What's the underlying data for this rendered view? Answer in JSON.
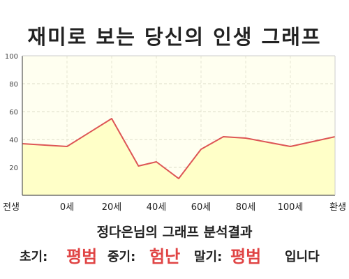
{
  "title": "재미로 보는 당신의 인생 그래프",
  "chart_data": {
    "type": "area",
    "x": [
      "전생",
      "0세",
      "20세",
      "40세",
      "60세",
      "80세",
      "100세",
      "환생"
    ],
    "x_numeric": [
      -20,
      0,
      20,
      40,
      60,
      80,
      100,
      120
    ],
    "series": [
      {
        "x": [
          -20,
          0,
          20,
          32,
          40,
          50,
          60,
          70,
          80,
          100,
          120
        ],
        "values": [
          37,
          35,
          55,
          21,
          24,
          12,
          33,
          42,
          41,
          35,
          42
        ]
      }
    ],
    "ylim": [
      0,
      100
    ],
    "yticks": [
      20,
      40,
      60,
      80,
      100
    ],
    "grid": true,
    "line_color": "#dd5555",
    "fill_color": "#ffffc8"
  },
  "summary": {
    "heading": "정다은님의 그래프 분석결과",
    "early_label": "초기:",
    "early_value": "평범",
    "middle_label": "중기:",
    "middle_value": "험난",
    "late_label": "말기:",
    "late_value": "평범",
    "suffix": "입니다",
    "highlight_color": "#e04444"
  }
}
